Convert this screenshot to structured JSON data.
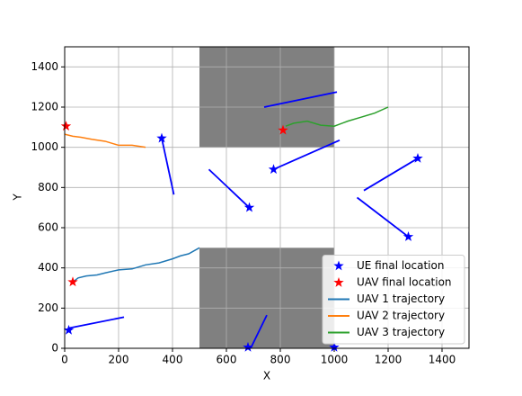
{
  "chart_data": {
    "type": "line",
    "xlabel": "X",
    "ylabel": "Y",
    "xlim": [
      0,
      1500
    ],
    "ylim": [
      0,
      1500
    ],
    "xticks": [
      0,
      200,
      400,
      600,
      800,
      1000,
      1200,
      1400
    ],
    "yticks": [
      0,
      200,
      400,
      600,
      800,
      1000,
      1200,
      1400
    ],
    "grid": true,
    "legend": "lower right",
    "regions": {
      "color": "#808080",
      "items": [
        {
          "x": [
            500,
            1000
          ],
          "y": [
            1000,
            1500
          ]
        },
        {
          "x": [
            500,
            1000
          ],
          "y": [
            0,
            500
          ]
        }
      ]
    },
    "ue_paths": {
      "color": "#0000ff",
      "items": [
        {
          "x": [
            360,
            405
          ],
          "y": [
            1045,
            765
          ]
        },
        {
          "x": [
            535,
            685
          ],
          "y": [
            890,
            700
          ]
        },
        {
          "x": [
            775,
            1020
          ],
          "y": [
            890,
            1035
          ]
        },
        {
          "x": [
            1110,
            1310
          ],
          "y": [
            785,
            945
          ]
        },
        {
          "x": [
            1085,
            1275
          ],
          "y": [
            750,
            555
          ]
        },
        {
          "x": [
            15,
            220
          ],
          "y": [
            100,
            155
          ]
        },
        {
          "x": [
            690,
            750
          ],
          "y": [
            0,
            165
          ]
        },
        {
          "x": [
            995,
            1005
          ],
          "y": [
            0,
            15
          ]
        },
        {
          "x": [
            740,
            1010
          ],
          "y": [
            1200,
            1275
          ]
        }
      ]
    },
    "series": [
      {
        "name": "UE final location",
        "kind": "star",
        "color": "#0000ff",
        "x": [
          360,
          685,
          775,
          1310,
          1275,
          15,
          680,
          1000
        ],
        "y": [
          1045,
          700,
          890,
          945,
          555,
          90,
          5,
          5
        ]
      },
      {
        "name": "UAV final location",
        "kind": "star",
        "color": "#ff0000",
        "x": [
          5,
          30,
          810
        ],
        "y": [
          1105,
          330,
          1085
        ]
      },
      {
        "name": "UAV 1 trajectory",
        "kind": "line",
        "color": "#1f77b4",
        "x": [
          30,
          50,
          80,
          120,
          150,
          200,
          250,
          300,
          350,
          400,
          430,
          460,
          500
        ],
        "y": [
          330,
          350,
          360,
          365,
          375,
          390,
          395,
          415,
          425,
          445,
          460,
          470,
          500
        ]
      },
      {
        "name": "UAV 2 trajectory",
        "kind": "line",
        "color": "#ff7f0e",
        "x": [
          0,
          30,
          60,
          100,
          150,
          200,
          250,
          300
        ],
        "y": [
          1065,
          1055,
          1050,
          1040,
          1030,
          1010,
          1010,
          1000
        ]
      },
      {
        "name": "UAV 3 trajectory",
        "kind": "line",
        "color": "#2ca02c",
        "x": [
          820,
          850,
          900,
          950,
          1000,
          1050,
          1100,
          1150,
          1200
        ],
        "y": [
          1105,
          1120,
          1130,
          1110,
          1105,
          1130,
          1150,
          1170,
          1200
        ]
      }
    ]
  }
}
